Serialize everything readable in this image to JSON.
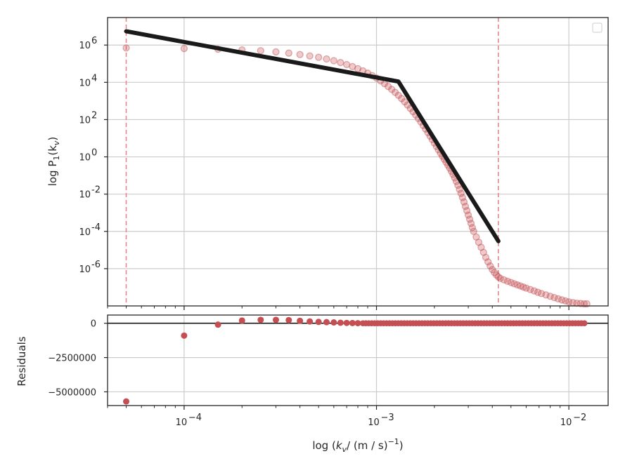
{
  "chart_data": [
    {
      "type": "scatter",
      "panel": "main",
      "ylabel_text": "log P",
      "ylabel_sub": "1",
      "ylabel_arg": "k",
      "ylabel_arg_sub": "v",
      "xscale": "log",
      "yscale": "log",
      "xlim": [
        4e-05,
        0.016
      ],
      "ylim": [
        1e-08,
        30000000.0
      ],
      "grid": true,
      "legend": "top-right, empty",
      "ytick_labels": [
        {
          "base": "10",
          "exp": "6",
          "value": 1000000.0
        },
        {
          "base": "10",
          "exp": "4",
          "value": 10000.0
        },
        {
          "base": "10",
          "exp": "2",
          "value": 100.0
        },
        {
          "base": "10",
          "exp": "0",
          "value": 1
        },
        {
          "base": "10",
          "exp": "-2",
          "value": 0.01
        },
        {
          "base": "10",
          "exp": "-4",
          "value": 0.0001
        },
        {
          "base": "10",
          "exp": "-6",
          "value": 1e-06
        }
      ],
      "vlines": [
        5e-05,
        0.0043
      ],
      "colors": {
        "points": "#c44e52",
        "fit": "#1a1a1a",
        "vlines": "#e8868a"
      },
      "data_points": [
        [
          5e-05,
          700000.0
        ],
        [
          0.0001,
          650000.0
        ],
        [
          0.00015,
          600000.0
        ],
        [
          0.0002,
          550000.0
        ],
        [
          0.00025,
          500000.0
        ],
        [
          0.0003,
          430000.0
        ],
        [
          0.00035,
          370000.0
        ],
        [
          0.0004,
          310000.0
        ],
        [
          0.00045,
          260000.0
        ],
        [
          0.0005,
          220000.0
        ],
        [
          0.00055,
          180000.0
        ],
        [
          0.0006,
          145000.0
        ],
        [
          0.00065,
          115000.0
        ],
        [
          0.0007,
          90000.0
        ],
        [
          0.00075,
          70000.0
        ],
        [
          0.0008,
          54000.0
        ],
        [
          0.00085,
          41000.0
        ],
        [
          0.0009,
          31000.0
        ],
        [
          0.00095,
          23000.0
        ],
        [
          0.001,
          17000.0
        ],
        [
          0.00105,
          12000.0
        ],
        [
          0.0011,
          8500.0
        ],
        [
          0.00115,
          6000.0
        ],
        [
          0.0012,
          4200.0
        ],
        [
          0.00125,
          2900.0
        ],
        [
          0.0013,
          2000.0
        ],
        [
          0.00135,
          1350.0
        ],
        [
          0.0014,
          900
        ],
        [
          0.00145,
          600
        ],
        [
          0.0015,
          400
        ],
        [
          0.00155,
          265
        ],
        [
          0.0016,
          175
        ],
        [
          0.00165,
          115
        ],
        [
          0.0017,
          75
        ],
        [
          0.00175,
          48
        ],
        [
          0.0018,
          31
        ],
        [
          0.00185,
          20
        ],
        [
          0.0019,
          13
        ],
        [
          0.00195,
          8.5
        ],
        [
          0.002,
          5.5
        ],
        [
          0.00205,
          3.6
        ],
        [
          0.0021,
          2.4
        ],
        [
          0.00215,
          1.6
        ],
        [
          0.0022,
          1.1
        ],
        [
          0.00225,
          0.75
        ],
        [
          0.0023,
          0.52
        ],
        [
          0.00235,
          0.36
        ],
        [
          0.0024,
          0.25
        ],
        [
          0.00245,
          0.17
        ],
        [
          0.0025,
          0.115
        ],
        [
          0.00255,
          0.075
        ],
        [
          0.0026,
          0.048
        ],
        [
          0.00265,
          0.03
        ],
        [
          0.0027,
          0.018
        ],
        [
          0.00275,
          0.011
        ],
        [
          0.0028,
          0.0065
        ],
        [
          0.00285,
          0.0038
        ],
        [
          0.0029,
          0.0022
        ],
        [
          0.00295,
          0.0013
        ],
        [
          0.003,
          0.00075
        ],
        [
          0.00305,
          0.00045
        ],
        [
          0.0031,
          0.00027
        ],
        [
          0.00315,
          0.00016
        ],
        [
          0.0032,
          0.0001
        ],
        [
          0.0033,
          5e-05
        ],
        [
          0.0034,
          2.6e-05
        ],
        [
          0.0035,
          1.4e-05
        ],
        [
          0.0036,
          7.5e-06
        ],
        [
          0.0037,
          4e-06
        ],
        [
          0.0038,
          2.3e-06
        ],
        [
          0.0039,
          1.4e-06
        ],
        [
          0.004,
          9e-07
        ],
        [
          0.0041,
          6.2e-07
        ],
        [
          0.0042,
          4.6e-07
        ],
        [
          0.0043,
          3.6e-07
        ],
        [
          0.0044,
          3e-07
        ],
        [
          0.0046,
          2.5e-07
        ],
        [
          0.0048,
          2.1e-07
        ],
        [
          0.005,
          1.8e-07
        ],
        [
          0.0052,
          1.55e-07
        ],
        [
          0.0054,
          1.35e-07
        ],
        [
          0.0056,
          1.18e-07
        ],
        [
          0.0058,
          1.03e-07
        ],
        [
          0.006,
          9e-08
        ],
        [
          0.0063,
          7.6e-08
        ],
        [
          0.0066,
          6.4e-08
        ],
        [
          0.0069,
          5.4e-08
        ],
        [
          0.0072,
          4.6e-08
        ],
        [
          0.0076,
          3.9e-08
        ],
        [
          0.008,
          3.3e-08
        ],
        [
          0.0084,
          2.8e-08
        ],
        [
          0.0088,
          2.4e-08
        ],
        [
          0.0092,
          2.1e-08
        ],
        [
          0.0096,
          1.85e-08
        ],
        [
          0.01,
          1.65e-08
        ],
        [
          0.0105,
          1.5e-08
        ],
        [
          0.011,
          1.4e-08
        ],
        [
          0.0115,
          1.35e-08
        ],
        [
          0.012,
          1.3e-08
        ],
        [
          0.0124,
          1.3e-08
        ]
      ],
      "fit_line": [
        [
          5e-05,
          5500000.0
        ],
        [
          0.0013,
          11000.0
        ],
        [
          0.0043,
          3e-05
        ]
      ]
    },
    {
      "type": "scatter",
      "panel": "residuals",
      "ylabel": "Residuals",
      "xlabel_prefix": "log (",
      "xlabel_var": "k",
      "xlabel_var_sub": "v",
      "xlabel_mid": "/ (m / s)",
      "xlabel_exp": "−1",
      "xlabel_suffix": ")",
      "xscale": "log",
      "xlim": [
        4e-05,
        0.016
      ],
      "ylim": [
        -6000000,
        600000
      ],
      "grid": true,
      "hline": 0,
      "ytick_labels": [
        {
          "label": "0",
          "value": 0
        },
        {
          "label": "−2500000",
          "value": -2500000
        },
        {
          "label": "−5000000",
          "value": -5000000
        }
      ],
      "xtick_labels": [
        {
          "base": "10",
          "exp": "−4",
          "value": 0.0001
        },
        {
          "base": "10",
          "exp": "−3",
          "value": 0.001
        },
        {
          "base": "10",
          "exp": "−2",
          "value": 0.01
        }
      ],
      "colors": {
        "points": "#c44e52",
        "hline": "#1a1a1a"
      },
      "residual_points": [
        [
          5e-05,
          -5700000
        ],
        [
          0.0001,
          -900000
        ],
        [
          0.00015,
          -100000
        ],
        [
          0.0002,
          200000
        ],
        [
          0.00025,
          250000
        ],
        [
          0.0003,
          250000
        ],
        [
          0.00035,
          230000
        ],
        [
          0.0004,
          180000
        ],
        [
          0.00045,
          130000
        ],
        [
          0.0005,
          100000
        ],
        [
          0.00055,
          80000
        ],
        [
          0.0006,
          60000
        ],
        [
          0.00065,
          40000
        ],
        [
          0.0007,
          25000
        ],
        [
          0.00075,
          15000
        ],
        [
          0.0008,
          8000
        ]
      ],
      "residual_flat_x": [
        0.00085,
        0.01245
      ]
    }
  ]
}
